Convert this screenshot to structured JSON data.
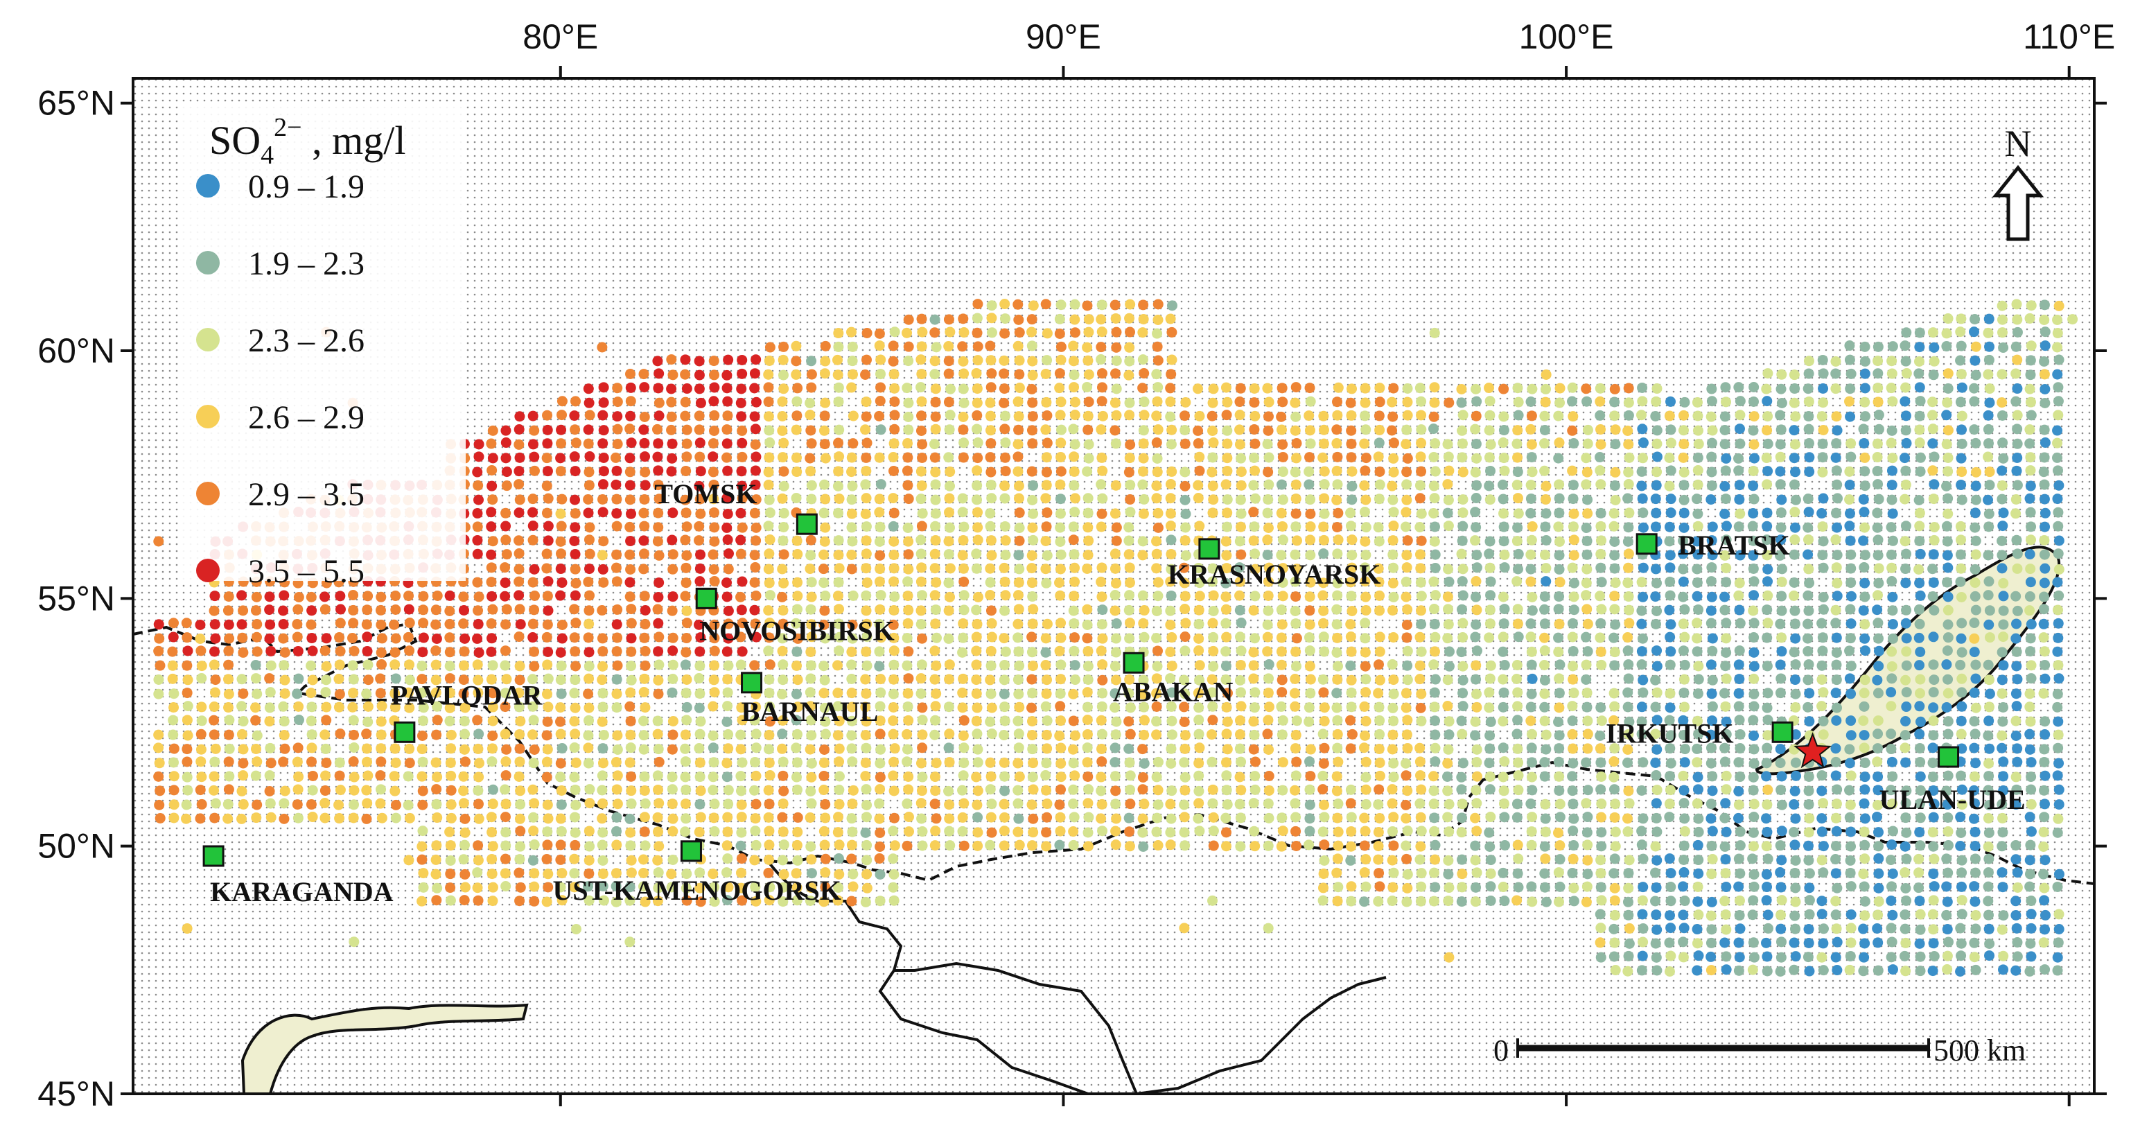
{
  "map": {
    "lon_range": [
      71.5,
      110.5
    ],
    "lat_range": [
      45,
      65.5
    ],
    "lon_ticks": [
      {
        "value": 80,
        "label": "80°E"
      },
      {
        "value": 90,
        "label": "90°E"
      },
      {
        "value": 100,
        "label": "100°E"
      },
      {
        "value": 110,
        "label": "110°E"
      }
    ],
    "lat_ticks": [
      {
        "value": 45,
        "label": "45°N"
      },
      {
        "value": 50,
        "label": "50°N"
      },
      {
        "value": 55,
        "label": "55°N"
      },
      {
        "value": 60,
        "label": "60°N"
      },
      {
        "value": 65,
        "label": "65°N"
      }
    ],
    "legend": {
      "title_main": "SO",
      "title_sub": "4",
      "title_sup": "2−",
      "title_unit": " , mg/l",
      "classes": [
        {
          "label": "0.9 – 1.9",
          "color": "#3a8fc9"
        },
        {
          "label": "1.9 – 2.3",
          "color": "#8fb7a3"
        },
        {
          "label": "2.3 – 2.6",
          "color": "#d5e38f"
        },
        {
          "label": "2.6 – 2.9",
          "color": "#f7cf57"
        },
        {
          "label": "2.9 – 3.5",
          "color": "#ee8434"
        },
        {
          "label": "3.5 – 5.5",
          "color": "#d92323"
        }
      ]
    },
    "cities": [
      {
        "name": "TOMSK",
        "lon": 84.9,
        "lat": 56.5
      },
      {
        "name": "NOVOSIBIRSK",
        "lon": 82.9,
        "lat": 55.0
      },
      {
        "name": "KRASNOYARSK",
        "lon": 92.9,
        "lat": 56.0
      },
      {
        "name": "BRATSK",
        "lon": 101.6,
        "lat": 56.1
      },
      {
        "name": "PAVLODAR",
        "lon": 76.9,
        "lat": 52.3
      },
      {
        "name": "BARNAUL",
        "lon": 83.8,
        "lat": 53.3
      },
      {
        "name": "ABAKAN",
        "lon": 91.4,
        "lat": 53.7
      },
      {
        "name": "IRKUTSK",
        "lon": 104.3,
        "lat": 52.3
      },
      {
        "name": "ULAN-UDE",
        "lon": 107.6,
        "lat": 51.8
      },
      {
        "name": "KARAGANDA",
        "lon": 73.1,
        "lat": 49.8
      },
      {
        "name": "UST-KAMENOGORSK",
        "lon": 82.6,
        "lat": 49.9
      }
    ],
    "star_marker": {
      "lon": 104.9,
      "lat": 51.9,
      "color": "#e02020"
    },
    "scale_bar": {
      "start_label": "0",
      "end_label": "500 km"
    },
    "north_arrow": {
      "label": "N"
    },
    "colors": {
      "lake": "#efefd0",
      "border": "#111111",
      "city_marker": "#22c33a"
    }
  }
}
